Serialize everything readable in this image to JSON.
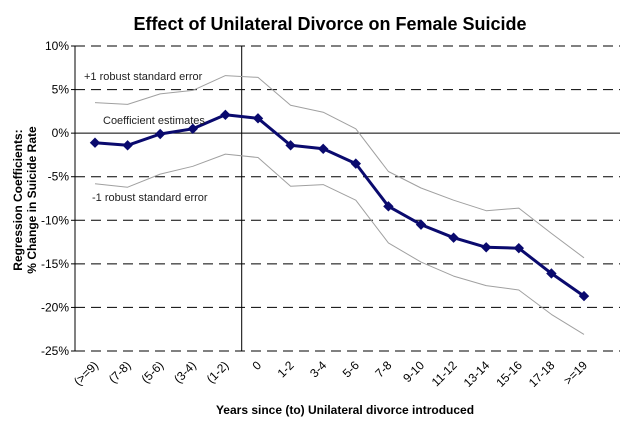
{
  "chart_data": {
    "type": "line",
    "title": "Effect of Unilateral Divorce on Female Suicide",
    "xlabel": "Years since (to) Unilateral divorce introduced",
    "ylabel_line1": "Regression Coefficients:",
    "ylabel_line2": "% Change in Suicide Rate",
    "ylim": [
      -25,
      10
    ],
    "yticks": [
      10,
      5,
      0,
      -5,
      -10,
      -15,
      -20,
      -25
    ],
    "ytick_labels": [
      "10%",
      "5%",
      "0%",
      "-5%",
      "-10%",
      "-15%",
      "-20%",
      "-25%"
    ],
    "categories": [
      "(>=9)",
      "(7-8)",
      "(5-6)",
      "(3-4)",
      "(1-2)",
      "0",
      "1-2",
      "3-4",
      "5-6",
      "7-8",
      "9-10",
      "11-12",
      "13-14",
      "15-16",
      "17-18",
      ">=19"
    ],
    "gridlines": "dashed-horizontal",
    "vertical_reference_at": "0",
    "series": [
      {
        "name": "Coefficient estimates",
        "values": [
          -1.1,
          -1.4,
          -0.1,
          0.5,
          2.1,
          1.7,
          -1.4,
          -1.8,
          -3.5,
          -8.4,
          -10.5,
          -12.0,
          -13.1,
          -13.2,
          -16.1,
          -18.7
        ],
        "color": "#0a0a6e",
        "style": "bold-with-diamond-markers"
      },
      {
        "name": "+1 robust standard error",
        "values": [
          3.5,
          3.3,
          4.5,
          4.9,
          6.6,
          6.4,
          3.2,
          2.4,
          0.5,
          -4.4,
          -6.3,
          -7.7,
          -8.9,
          -8.6,
          -11.5,
          -14.3
        ],
        "color": "#a0a0a0",
        "style": "thin"
      },
      {
        "name": "-1 robust standard error",
        "values": [
          -5.8,
          -6.2,
          -4.7,
          -3.8,
          -2.4,
          -2.8,
          -6.1,
          -5.9,
          -7.7,
          -12.6,
          -14.8,
          -16.4,
          -17.5,
          -18.0,
          -20.8,
          -23.1
        ],
        "color": "#a0a0a0",
        "style": "thin"
      }
    ],
    "annotations": {
      "upper_se": "+1 robust standard error",
      "estimates": "Coefficient estimates",
      "lower_se": "-1 robust standard error"
    }
  }
}
